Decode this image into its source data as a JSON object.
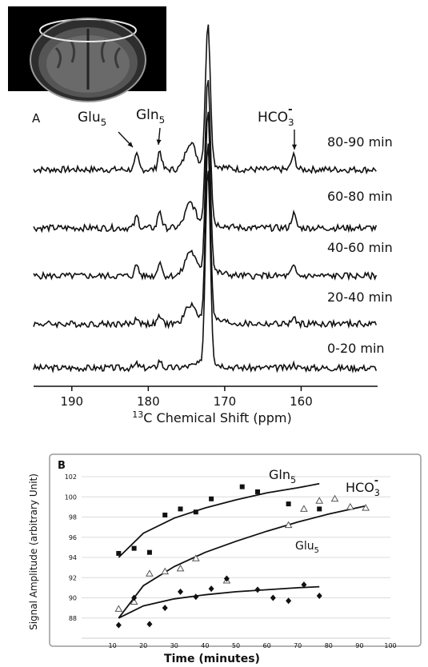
{
  "chart_data": [
    {
      "type": "line",
      "panel_label": "A",
      "xlabel": "13C Chemical Shift (ppm)",
      "xlabel_sup": "13",
      "xlabel_main": "C Chemical Shift (ppm)",
      "xlim": [
        195,
        150
      ],
      "x_ticks": [
        190,
        180,
        170,
        160
      ],
      "series": [
        {
          "name": "0-20 min",
          "peaks": {
            "172.2": 100,
            "174.5": 0,
            "178.5": 6,
            "181.5": 3,
            "161": 3
          }
        },
        {
          "name": "20-40 min",
          "peaks": {
            "172.2": 100,
            "174.5": 14,
            "178.5": 6,
            "181.5": 5,
            "161": 4
          }
        },
        {
          "name": "40-60 min",
          "peaks": {
            "172.2": 100,
            "174.5": 18,
            "178.5": 12,
            "181.5": 9,
            "161": 7
          }
        },
        {
          "name": "60-80 min",
          "peaks": {
            "172.2": 100,
            "174.5": 18,
            "178.5": 14,
            "181.5": 9,
            "161": 11
          }
        },
        {
          "name": "80-90 min",
          "peaks": {
            "172.2": 100,
            "174.5": 20,
            "178.5": 15,
            "181.5": 11,
            "161": 11
          }
        }
      ],
      "annotations": [
        {
          "text": "Glu",
          "sub": "5",
          "ppm": 181.5
        },
        {
          "text": "Gln",
          "sub": "5",
          "ppm": 178.5
        },
        {
          "text": "HCO",
          "sub": "3",
          "sup": "-",
          "ppm": 161
        }
      ]
    },
    {
      "type": "scatter",
      "panel_label": "B",
      "xlabel": "Time (minutes)",
      "ylabel": "Signal Amplitude (arbitrary Unit)",
      "xlim": [
        0,
        100
      ],
      "ylim": [
        86,
        102
      ],
      "x_ticks": [
        10,
        20,
        30,
        40,
        50,
        60,
        70,
        80,
        90,
        100
      ],
      "y_ticks": [
        88,
        90,
        92,
        94,
        96,
        98,
        100,
        102
      ],
      "grid": true,
      "series": [
        {
          "name": "Gln5",
          "label": "Gln",
          "sub": "5",
          "marker": "square",
          "x": [
            12,
            17,
            22,
            27,
            32,
            37,
            42,
            52,
            57,
            67,
            77
          ],
          "y": [
            94.4,
            94.9,
            94.5,
            98.2,
            98.8,
            98.5,
            99.8,
            101.0,
            100.5,
            99.3,
            98.8
          ],
          "fit": [
            [
              12,
              94.0
            ],
            [
              20,
              96.4
            ],
            [
              30,
              97.9
            ],
            [
              40,
              98.9
            ],
            [
              50,
              99.7
            ],
            [
              60,
              100.4
            ],
            [
              70,
              100.9
            ],
            [
              77,
              101.3
            ]
          ]
        },
        {
          "name": "HCO3-",
          "label": "HCO",
          "sub": "3",
          "sup": "-",
          "marker": "triangle",
          "x": [
            12,
            17,
            22,
            27,
            32,
            37,
            47,
            67,
            72,
            77,
            82,
            87,
            92
          ],
          "y": [
            88.9,
            89.6,
            92.4,
            92.6,
            92.9,
            93.9,
            91.7,
            97.2,
            98.8,
            99.6,
            99.8,
            99.0,
            98.9
          ],
          "fit": [
            [
              12,
              88.0
            ],
            [
              20,
              91.2
            ],
            [
              30,
              93.1
            ],
            [
              40,
              94.5
            ],
            [
              50,
              95.6
            ],
            [
              60,
              96.6
            ],
            [
              70,
              97.5
            ],
            [
              80,
              98.3
            ],
            [
              92,
              99.1
            ]
          ]
        },
        {
          "name": "Glu5",
          "label": "Glu",
          "sub": "5",
          "marker": "diamond",
          "x": [
            12,
            17,
            22,
            27,
            32,
            37,
            42,
            47,
            57,
            62,
            67,
            72,
            77
          ],
          "y": [
            87.3,
            90.0,
            87.4,
            89.0,
            90.6,
            90.1,
            90.9,
            91.9,
            90.8,
            90.0,
            89.7,
            91.3,
            90.2
          ],
          "fit": [
            [
              12,
              88.0
            ],
            [
              20,
              89.2
            ],
            [
              30,
              89.9
            ],
            [
              40,
              90.3
            ],
            [
              50,
              90.6
            ],
            [
              60,
              90.8
            ],
            [
              70,
              91.0
            ],
            [
              77,
              91.1
            ]
          ]
        }
      ]
    }
  ]
}
